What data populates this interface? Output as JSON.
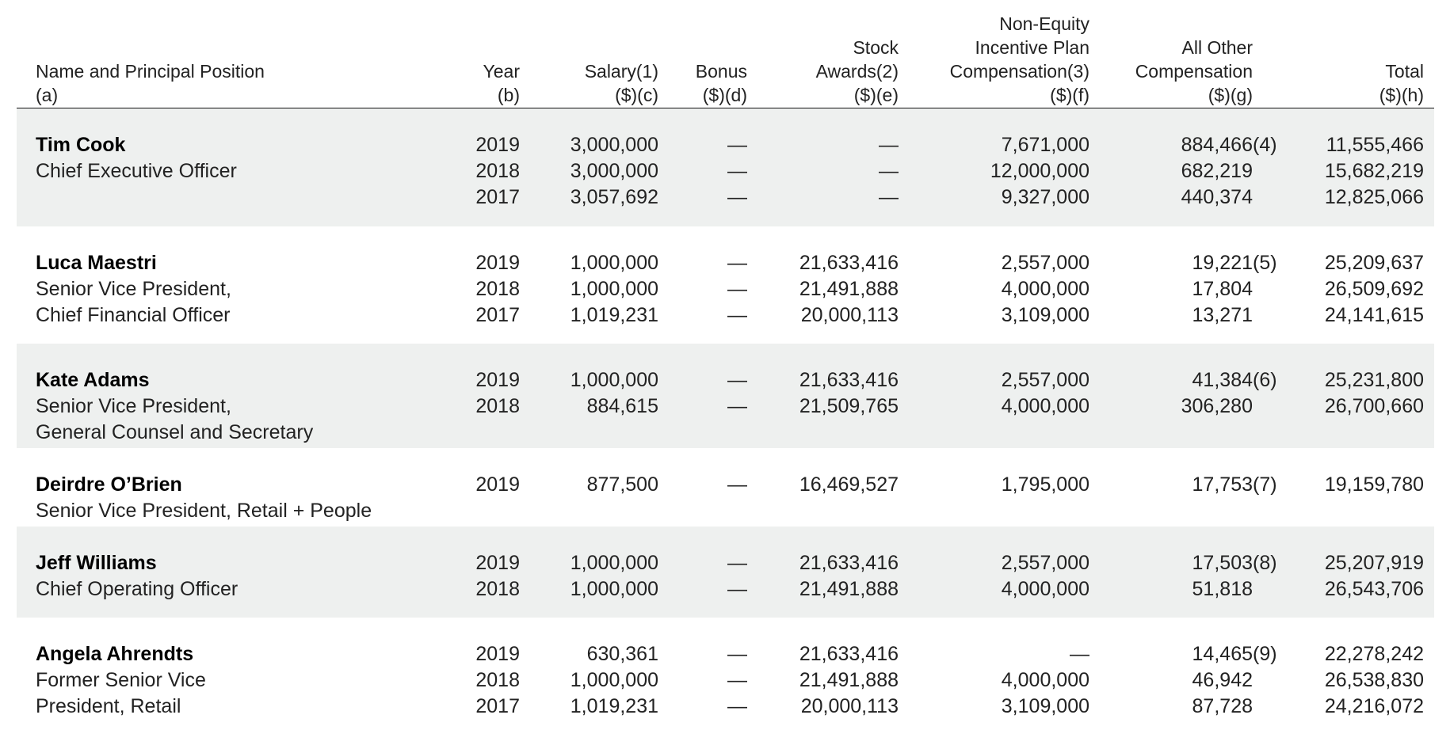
{
  "headers": {
    "name": [
      "Name and Principal Position",
      "(a)"
    ],
    "year": [
      "Year",
      "(b)"
    ],
    "salary": [
      "Salary(1)",
      "($)(c)"
    ],
    "bonus": [
      "Bonus",
      "($)(d)"
    ],
    "stock": [
      "Stock",
      "Awards(2)",
      "($)(e)"
    ],
    "nonequity": [
      "Non-Equity",
      "Incentive Plan",
      "Compensation(3)",
      "($)(f)"
    ],
    "other": [
      "All Other",
      "Compensation",
      "($)(g)"
    ],
    "total": [
      "Total",
      "($)(h)"
    ]
  },
  "colors": {
    "band": "#eef0ef",
    "text": "#222222"
  },
  "executives": [
    {
      "name": "Tim Cook",
      "title": [
        "Chief Executive Officer"
      ],
      "shaded": true,
      "rows": [
        {
          "year": "2019",
          "salary": "3,000,000",
          "bonus": "—",
          "stock": "—",
          "nonequity": "7,671,000",
          "other": "884,466",
          "other_note": "(4)",
          "total": "11,555,466"
        },
        {
          "year": "2018",
          "salary": "3,000,000",
          "bonus": "—",
          "stock": "—",
          "nonequity": "12,000,000",
          "other": "682,219",
          "other_note": "",
          "total": "15,682,219"
        },
        {
          "year": "2017",
          "salary": "3,057,692",
          "bonus": "—",
          "stock": "—",
          "nonequity": "9,327,000",
          "other": "440,374",
          "other_note": "",
          "total": "12,825,066"
        }
      ]
    },
    {
      "name": "Luca Maestri",
      "title": [
        "Senior Vice President,",
        "Chief Financial Officer"
      ],
      "shaded": false,
      "rows": [
        {
          "year": "2019",
          "salary": "1,000,000",
          "bonus": "—",
          "stock": "21,633,416",
          "nonequity": "2,557,000",
          "other": "19,221",
          "other_note": "(5)",
          "total": "25,209,637"
        },
        {
          "year": "2018",
          "salary": "1,000,000",
          "bonus": "—",
          "stock": "21,491,888",
          "nonequity": "4,000,000",
          "other": "17,804",
          "other_note": "",
          "total": "26,509,692"
        },
        {
          "year": "2017",
          "salary": "1,019,231",
          "bonus": "—",
          "stock": "20,000,113",
          "nonequity": "3,109,000",
          "other": "13,271",
          "other_note": "",
          "total": "24,141,615"
        }
      ]
    },
    {
      "name": "Kate Adams",
      "title": [
        "Senior Vice President,",
        "General Counsel and Secretary"
      ],
      "shaded": true,
      "rows": [
        {
          "year": "2019",
          "salary": "1,000,000",
          "bonus": "—",
          "stock": "21,633,416",
          "nonequity": "2,557,000",
          "other": "41,384",
          "other_note": "(6)",
          "total": "25,231,800"
        },
        {
          "year": "2018",
          "salary": "884,615",
          "bonus": "—",
          "stock": "21,509,765",
          "nonequity": "4,000,000",
          "other": "306,280",
          "other_note": "",
          "total": "26,700,660"
        }
      ]
    },
    {
      "name": "Deirdre O’Brien",
      "title": [
        "Senior Vice President, Retail + People"
      ],
      "shaded": false,
      "rows": [
        {
          "year": "2019",
          "salary": "877,500",
          "bonus": "—",
          "stock": "16,469,527",
          "nonequity": "1,795,000",
          "other": "17,753",
          "other_note": "(7)",
          "total": "19,159,780"
        }
      ]
    },
    {
      "name": "Jeff Williams",
      "title": [
        "Chief Operating Officer"
      ],
      "shaded": true,
      "rows": [
        {
          "year": "2019",
          "salary": "1,000,000",
          "bonus": "—",
          "stock": "21,633,416",
          "nonequity": "2,557,000",
          "other": "17,503",
          "other_note": "(8)",
          "total": "25,207,919"
        },
        {
          "year": "2018",
          "salary": "1,000,000",
          "bonus": "—",
          "stock": "21,491,888",
          "nonequity": "4,000,000",
          "other": "51,818",
          "other_note": "",
          "total": "26,543,706"
        }
      ]
    },
    {
      "name": "Angela Ahrendts",
      "title": [
        "Former Senior Vice",
        "President, Retail"
      ],
      "shaded": false,
      "rows": [
        {
          "year": "2019",
          "salary": "630,361",
          "bonus": "—",
          "stock": "21,633,416",
          "nonequity": "—",
          "other": "14,465",
          "other_note": "(9)",
          "total": "22,278,242"
        },
        {
          "year": "2018",
          "salary": "1,000,000",
          "bonus": "—",
          "stock": "21,491,888",
          "nonequity": "4,000,000",
          "other": "46,942",
          "other_note": "",
          "total": "26,538,830"
        },
        {
          "year": "2017",
          "salary": "1,019,231",
          "bonus": "—",
          "stock": "20,000,113",
          "nonequity": "3,109,000",
          "other": "87,728",
          "other_note": "",
          "total": "24,216,072"
        }
      ]
    }
  ]
}
